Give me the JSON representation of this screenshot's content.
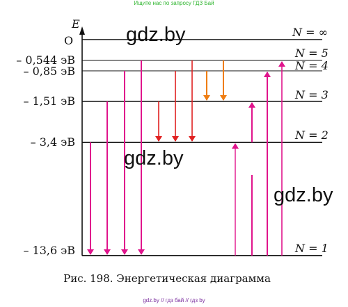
{
  "banner_top": "Ищите нас по запросу ГДЗ Бай",
  "banner_bottom": "gdz.by // гдз бай // гдз by",
  "watermark": "gdz.by",
  "caption": "Рис. 198. Энергетическая диаграмма",
  "axis": {
    "label": "E",
    "origin_label": "O"
  },
  "colors": {
    "magenta": "#e0148c",
    "red": "#e02020",
    "orange": "#ef7d12",
    "line": "#111111"
  },
  "levels": [
    {
      "n_label": "N = ∞",
      "energy_label": ""
    },
    {
      "n_label": "N = 5",
      "energy_label": "– 0,544 эВ"
    },
    {
      "n_label": "N = 4",
      "energy_label": "– 0,85 эВ"
    },
    {
      "n_label": "N = 3",
      "energy_label": "– 1,51 эВ"
    },
    {
      "n_label": "N = 2",
      "energy_label": "– 3,4 эВ"
    },
    {
      "n_label": "N = 1",
      "energy_label": "– 13,6 эВ"
    }
  ],
  "transitions": [
    {
      "from": "N = 2",
      "to": "N = 1",
      "type": "emission",
      "color": "magenta"
    },
    {
      "from": "N = 3",
      "to": "N = 1",
      "type": "emission",
      "color": "magenta"
    },
    {
      "from": "N = 4",
      "to": "N = 1",
      "type": "emission",
      "color": "magenta"
    },
    {
      "from": "N = 5",
      "to": "N = 1",
      "type": "emission",
      "color": "magenta"
    },
    {
      "from": "N = 3",
      "to": "N = 2",
      "type": "emission",
      "color": "red"
    },
    {
      "from": "N = 4",
      "to": "N = 2",
      "type": "emission",
      "color": "red"
    },
    {
      "from": "N = 5",
      "to": "N = 2",
      "type": "emission",
      "color": "red"
    },
    {
      "from": "N = 4",
      "to": "N = 3",
      "type": "emission",
      "color": "orange"
    },
    {
      "from": "N = 5",
      "to": "N = 3",
      "type": "emission",
      "color": "orange"
    },
    {
      "from": "N = 2",
      "to": "N = 3",
      "type": "absorption",
      "color": "magenta"
    },
    {
      "from": "N = 1",
      "to": "N = 2",
      "type": "absorption",
      "color": "magenta"
    },
    {
      "from": "N = 1",
      "to": "N = 3",
      "type": "absorption",
      "color": "magenta"
    },
    {
      "from": "N = 1",
      "to": "N = 4",
      "type": "absorption",
      "color": "magenta"
    },
    {
      "from": "N = 1",
      "to": "N = 5",
      "type": "absorption",
      "color": "magenta"
    }
  ]
}
